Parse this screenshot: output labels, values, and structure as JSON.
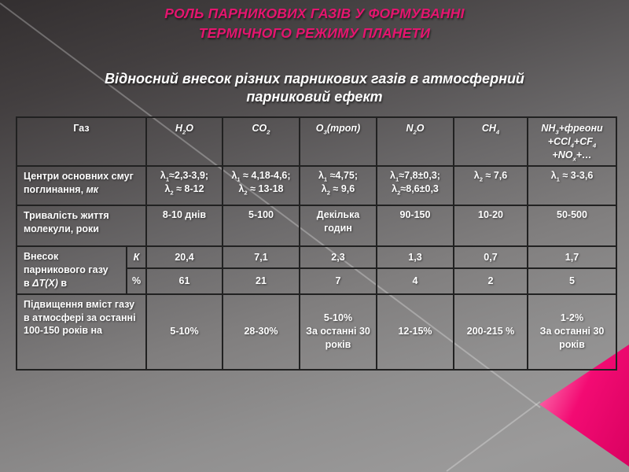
{
  "slide": {
    "title_line1": "РОЛЬ  ПАРНИКОВИХ ГАЗІВ  У ФОРМУВАННІ",
    "title_line2": "ТЕРМІЧНОГО РЕЖИМУ  ПЛАНЕТИ",
    "subtitle_line1": "Відносний внесок різних парникових газів в атмосферний",
    "subtitle_line2": "парниковий ефект"
  },
  "colors": {
    "title_pink": "#e5156f",
    "triangle_light": "#ff93c2",
    "triangle_pink": "#f30b73",
    "triangle_deep": "#d90160"
  },
  "table": {
    "header": [
      "Газ",
      "H_{2}O",
      "CO_{2}",
      "O_{3}(троп)",
      "N_{2}O",
      "CH_{4}",
      "NH_{3}+фреони\n+CCl_{4}+CF_{4}\n+NO_{x}+…"
    ],
    "absorption": {
      "label": "Центри основних смуг\nпоглинання, {i}мк{/i}",
      "values": [
        "λ_{1}≈2,3-3,9;\nλ_{2} ≈ 8-12",
        "λ_{1} ≈ 4,18-4,6;\nλ_{2} ≈ 13-18",
        "λ_{1} ≈4,75;\nλ_{2} ≈ 9,6",
        "λ_{1}≈7,8±0,3;\nλ_{2}≈8,6±0,3",
        "λ_{2} ≈ 7,6",
        "λ_{1} ≈ 3-3,6"
      ]
    },
    "lifetime": {
      "label": "Тривалість  життя\nмолекули, роки",
      "values": [
        "8-10 днів",
        "5-100",
        "Декілька\nгодин",
        "90-150",
        "10-20",
        "50-500"
      ]
    },
    "contribution": {
      "label": "Внесок\nпарникового газу\nв {i}ΔT(X){/i} в",
      "row_k_label": "К",
      "row_pct_label": "%",
      "k_values": [
        "20,4",
        "7,1",
        "2,3",
        "1,3",
        "0,7",
        "1,7"
      ],
      "pct_values": [
        "61",
        "21",
        "7",
        "4",
        "2",
        "5"
      ]
    },
    "increase": {
      "label": "Підвищення вміст газу\nв атмосфері за останні\n100-150 років на",
      "values": [
        "5-10%",
        "28-30%",
        "5-10%\nЗа останні 30\nроків",
        "12-15%",
        "200-215 %",
        "1-2%\nЗа останні 30\nроків"
      ]
    }
  }
}
